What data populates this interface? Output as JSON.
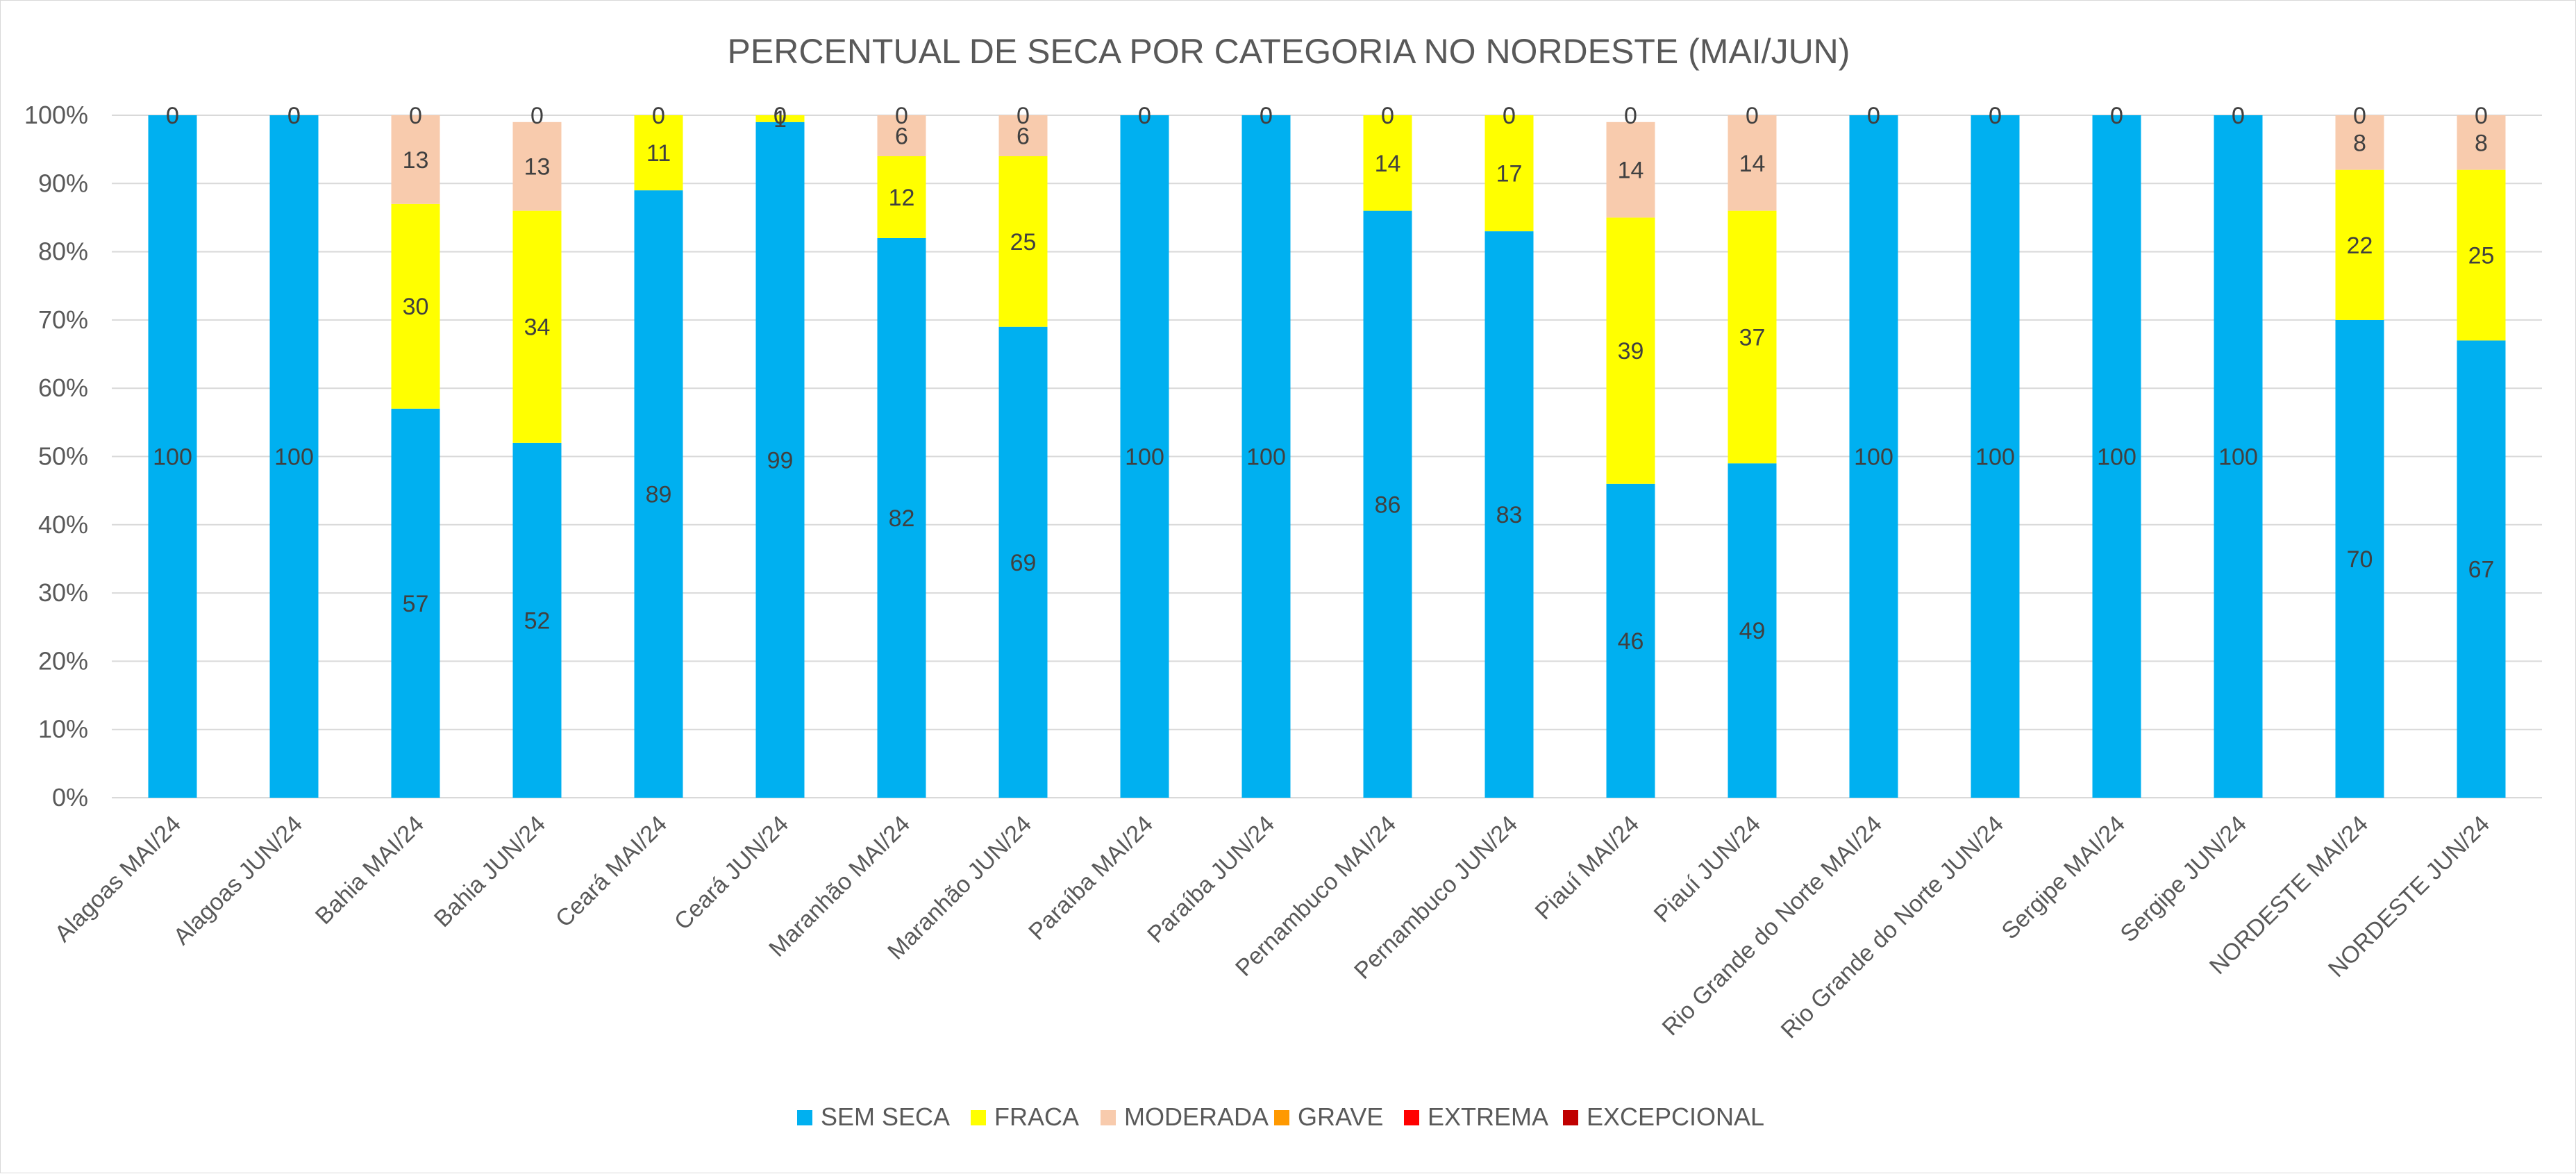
{
  "chart_data": {
    "type": "bar",
    "stacked": true,
    "percent_stacked": true,
    "title": "PERCENTUAL DE SECA POR CATEGORIA NO NORDESTE (MAI/JUN)",
    "xlabel": "",
    "ylabel": "",
    "ylim": [
      0,
      100
    ],
    "y_ticks": [
      "0%",
      "10%",
      "20%",
      "30%",
      "40%",
      "50%",
      "60%",
      "70%",
      "80%",
      "90%",
      "100%"
    ],
    "grid": true,
    "legend_position": "bottom",
    "categories": [
      "Alagoas MAI/24",
      "Alagoas JUN/24",
      "Bahia MAI/24",
      "Bahia JUN/24",
      "Ceará MAI/24",
      "Ceará JUN/24",
      "Maranhão MAI/24",
      "Maranhão JUN/24",
      "Paraíba MAI/24",
      "Paraíba JUN/24",
      "Pernambuco MAI/24",
      "Pernambuco JUN/24",
      "Piauí MAI/24",
      "Piauí JUN/24",
      "Rio Grande do Norte MAI/24",
      "Rio Grande do Norte JUN/24",
      "Sergipe MAI/24",
      "Sergipe JUN/24",
      "NORDESTE MAI/24",
      "NORDESTE JUN/24"
    ],
    "series": [
      {
        "name": "SEM SECA",
        "color": "#00b0f0",
        "values": [
          100,
          100,
          57,
          52,
          89,
          99,
          82,
          69,
          100,
          100,
          86,
          83,
          46,
          49,
          100,
          100,
          100,
          100,
          70,
          67
        ]
      },
      {
        "name": "FRACA",
        "color": "#ffff00",
        "values": [
          0,
          0,
          30,
          34,
          11,
          1,
          12,
          25,
          0,
          0,
          14,
          17,
          39,
          37,
          0,
          0,
          0,
          0,
          22,
          25
        ]
      },
      {
        "name": "MODERADA",
        "color": "#f8cbad",
        "values": [
          0,
          0,
          13,
          13,
          0,
          0,
          6,
          6,
          0,
          0,
          0,
          0,
          14,
          14,
          0,
          0,
          0,
          0,
          8,
          8
        ]
      },
      {
        "name": "GRAVE",
        "color": "#ff9900",
        "values": [
          0,
          0,
          0,
          0,
          0,
          0,
          0,
          0,
          0,
          0,
          0,
          0,
          0,
          0,
          0,
          0,
          0,
          0,
          0,
          0
        ]
      },
      {
        "name": "EXTREMA",
        "color": "#ff0000",
        "values": [
          0,
          0,
          0,
          0,
          0,
          0,
          0,
          0,
          0,
          0,
          0,
          0,
          0,
          0,
          0,
          0,
          0,
          0,
          0,
          0
        ]
      },
      {
        "name": "EXCEPCIONAL",
        "color": "#c00000",
        "values": [
          0,
          0,
          0,
          0,
          0,
          0,
          0,
          0,
          0,
          0,
          0,
          0,
          0,
          0,
          0,
          0,
          0,
          0,
          0,
          0
        ]
      }
    ],
    "data_labels": {
      "SEM SECA": [
        "100",
        "100",
        "57",
        "52",
        "89",
        "99",
        "82",
        "69",
        "100",
        "100",
        "86",
        "83",
        "46",
        "49",
        "100",
        "100",
        "100",
        "100",
        "70",
        "67"
      ],
      "FRACA": [
        "",
        "",
        "30",
        "34",
        "11",
        "1",
        "12",
        "25",
        "",
        "",
        "14",
        "17",
        "39",
        "37",
        "",
        "",
        "",
        "",
        "22",
        "25"
      ],
      "MODERADA": [
        "0",
        "0",
        "13",
        "13",
        "0",
        "0",
        "6",
        "6",
        "0",
        "0",
        "0",
        "0",
        "14",
        "14",
        "0",
        "0",
        "0",
        "0",
        "8",
        "8"
      ],
      "TOP": [
        "0",
        "0",
        "0",
        "0",
        "0",
        "0",
        "0",
        "0",
        "0",
        "0",
        "0",
        "0",
        "0",
        "0",
        "0",
        "0",
        "0",
        "0",
        "0",
        "0"
      ]
    }
  }
}
